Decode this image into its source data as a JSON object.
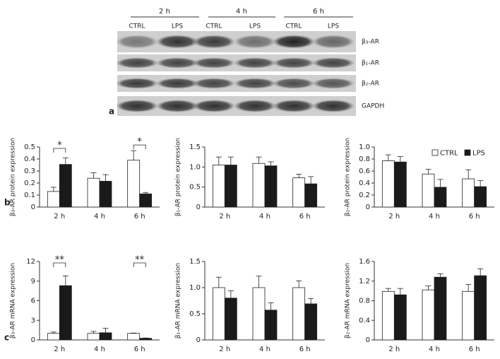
{
  "panel_labels": [
    "a",
    "b",
    "c"
  ],
  "blot": {
    "time_labels": [
      "2 h",
      "4 h",
      "6 h"
    ],
    "lane_labels": [
      "CTRL",
      "LPS",
      "CTRL",
      "LPS",
      "CTRL",
      "LPS"
    ],
    "row_labels": [
      "β₃-AR",
      "β₁-AR",
      "β₂-AR",
      "GAPDH"
    ]
  },
  "chart_data": [
    {
      "type": "bar",
      "ylabel": "β₃-AR protein expression",
      "categories": [
        "2 h",
        "4 h",
        "6 h"
      ],
      "series": [
        {
          "name": "CTRL",
          "color": "#ffffff",
          "values": [
            0.13,
            0.24,
            0.39
          ],
          "errors": [
            0.035,
            0.045,
            0.08
          ]
        },
        {
          "name": "LPS",
          "color": "#1a1a1a",
          "values": [
            0.355,
            0.215,
            0.11
          ],
          "errors": [
            0.055,
            0.055,
            0.012
          ]
        }
      ],
      "ylim": [
        0,
        0.5
      ],
      "yticks": [
        0,
        0.1,
        0.2,
        0.3,
        0.4,
        0.5
      ],
      "annotations": [
        {
          "label": "*",
          "category": "2 h"
        },
        {
          "label": "*",
          "category": "6 h"
        }
      ]
    },
    {
      "type": "bar",
      "ylabel": "β₁-AR protein expression",
      "categories": [
        "2 h",
        "4 h",
        "6 h"
      ],
      "series": [
        {
          "name": "CTRL",
          "color": "#ffffff",
          "values": [
            1.05,
            1.09,
            0.73
          ],
          "errors": [
            0.2,
            0.16,
            0.09
          ]
        },
        {
          "name": "LPS",
          "color": "#1a1a1a",
          "values": [
            1.05,
            1.03,
            0.58
          ],
          "errors": [
            0.2,
            0.1,
            0.18
          ]
        }
      ],
      "ylim": [
        0,
        1.5
      ],
      "yticks": [
        0,
        0.5,
        {
          "value": 1,
          "label": "1.0"
        },
        1.5
      ]
    },
    {
      "type": "bar",
      "ylabel": "β₂-AR protein expression",
      "categories": [
        "2 h",
        "4 h",
        "6 h"
      ],
      "series": [
        {
          "name": "CTRL",
          "color": "#ffffff",
          "values": [
            0.77,
            0.55,
            0.47
          ],
          "errors": [
            0.1,
            0.08,
            0.15
          ]
        },
        {
          "name": "LPS",
          "color": "#1a1a1a",
          "values": [
            0.75,
            0.33,
            0.34
          ],
          "errors": [
            0.09,
            0.13,
            0.1
          ]
        }
      ],
      "ylim": [
        0,
        1
      ],
      "yticks": [
        0,
        0.2,
        0.4,
        0.6,
        0.8,
        {
          "value": 1,
          "label": "1.0"
        }
      ],
      "legend": "upper right"
    },
    {
      "type": "bar",
      "ylabel": "β₃-AR mRNA expression",
      "categories": [
        "2 h",
        "4 h",
        "6 h"
      ],
      "series": [
        {
          "name": "CTRL",
          "color": "#ffffff",
          "values": [
            1.0,
            1.0,
            1.0
          ],
          "errors": [
            0.2,
            0.3,
            0.05
          ]
        },
        {
          "name": "LPS",
          "color": "#1a1a1a",
          "values": [
            8.3,
            1.1,
            0.25
          ],
          "errors": [
            1.5,
            0.7,
            0.05
          ]
        }
      ],
      "ylim": [
        0,
        12
      ],
      "yticks": [
        0,
        3,
        6,
        9,
        12
      ],
      "annotations": [
        {
          "label": "**",
          "category": "2 h"
        },
        {
          "label": "**",
          "category": "6 h"
        }
      ]
    },
    {
      "type": "bar",
      "ylabel": "β₁-AR mRNA expression",
      "categories": [
        "2 h",
        "4 h",
        "6 h"
      ],
      "series": [
        {
          "name": "CTRL",
          "color": "#ffffff",
          "values": [
            1.0,
            1.0,
            1.0
          ],
          "errors": [
            0.2,
            0.22,
            0.13
          ]
        },
        {
          "name": "LPS",
          "color": "#1a1a1a",
          "values": [
            0.8,
            0.57,
            0.69
          ],
          "errors": [
            0.14,
            0.14,
            0.1
          ]
        }
      ],
      "ylim": [
        0,
        1.5
      ],
      "yticks": [
        0,
        0.5,
        {
          "value": 1,
          "label": "1.0"
        },
        1.5
      ]
    },
    {
      "type": "bar",
      "ylabel": "β₂-AR mRNA expression",
      "categories": [
        "2 h",
        "4 h",
        "6 h"
      ],
      "series": [
        {
          "name": "CTRL",
          "color": "#ffffff",
          "values": [
            0.99,
            1.02,
            0.99
          ],
          "errors": [
            0.06,
            0.08,
            0.14
          ]
        },
        {
          "name": "LPS",
          "color": "#1a1a1a",
          "values": [
            0.92,
            1.28,
            1.31
          ],
          "errors": [
            0.13,
            0.07,
            0.14
          ]
        }
      ],
      "ylim": [
        0,
        1.6
      ],
      "yticks": [
        0,
        0.4,
        0.8,
        1.2,
        1.6
      ]
    }
  ]
}
